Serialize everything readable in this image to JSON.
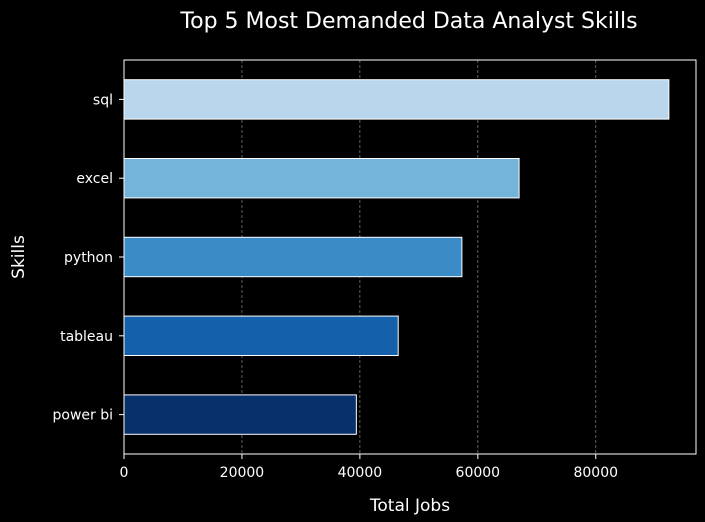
{
  "chart_data": {
    "type": "bar",
    "orientation": "horizontal",
    "title": "Top 5 Most Demanded Data Analyst Skills",
    "xlabel": "Total Jobs",
    "ylabel": "Skills",
    "categories": [
      "sql",
      "excel",
      "python",
      "tableau",
      "power bi"
    ],
    "values": [
      92400,
      67000,
      57300,
      46500,
      39400
    ],
    "bar_colors": [
      "#b9d6ec",
      "#75b4da",
      "#3b8bc6",
      "#1460ab",
      "#08306b"
    ],
    "xlim": [
      0,
      97000
    ],
    "xticks": [
      0,
      20000,
      40000,
      60000,
      80000
    ],
    "xtick_labels": [
      "0",
      "20000",
      "40000",
      "60000",
      "80000"
    ],
    "grid": "x-dashed",
    "background": "#000000",
    "foreground": "#ffffff"
  }
}
